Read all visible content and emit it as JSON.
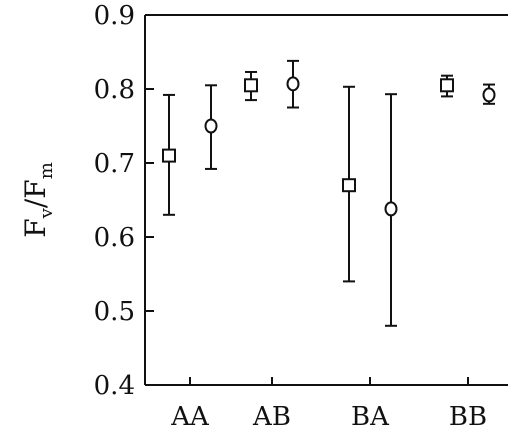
{
  "chart_data": {
    "type": "scatter",
    "ylabel": "Fv/Fm",
    "ylabel_main": "F",
    "ylabel_sub1": "v",
    "ylabel_sep": "/F",
    "ylabel_sub2": "m",
    "ylim": [
      0.4,
      0.9
    ],
    "yticks": [
      "0.4",
      "0.5",
      "0.6",
      "0.7",
      "0.8",
      "0.9"
    ],
    "categories": [
      "AA",
      "AB",
      "BA",
      "BB"
    ],
    "series": [
      {
        "marker": "square",
        "values": [
          0.71,
          0.805,
          0.67,
          0.805
        ],
        "err_low": [
          0.63,
          0.785,
          0.54,
          0.79
        ],
        "err_high": [
          0.792,
          0.823,
          0.803,
          0.818
        ]
      },
      {
        "marker": "circle",
        "values": [
          0.75,
          0.807,
          0.638,
          0.792
        ],
        "err_low": [
          0.692,
          0.775,
          0.48,
          0.78
        ],
        "err_high": [
          0.805,
          0.838,
          0.793,
          0.806
        ]
      }
    ],
    "grid": false
  }
}
